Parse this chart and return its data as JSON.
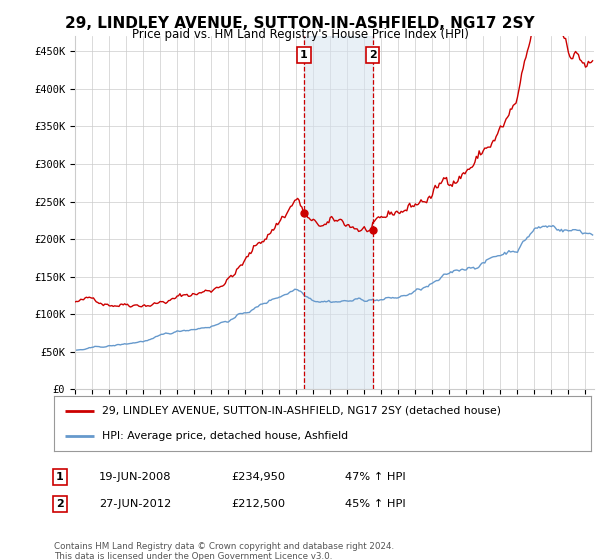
{
  "title": "29, LINDLEY AVENUE, SUTTON-IN-ASHFIELD, NG17 2SY",
  "subtitle": "Price paid vs. HM Land Registry's House Price Index (HPI)",
  "ylabel_ticks": [
    "£0",
    "£50K",
    "£100K",
    "£150K",
    "£200K",
    "£250K",
    "£300K",
    "£350K",
    "£400K",
    "£450K"
  ],
  "ytick_values": [
    0,
    50000,
    100000,
    150000,
    200000,
    250000,
    300000,
    350000,
    400000,
    450000
  ],
  "ylim": [
    0,
    470000
  ],
  "xlim_start": 1995.0,
  "xlim_end": 2025.5,
  "purchase1_date": 2008.46,
  "purchase1_price": 234950,
  "purchase2_date": 2012.49,
  "purchase2_price": 212500,
  "legend_line1": "29, LINDLEY AVENUE, SUTTON-IN-ASHFIELD, NG17 2SY (detached house)",
  "legend_line2": "HPI: Average price, detached house, Ashfield",
  "table_row1": [
    "1",
    "19-JUN-2008",
    "£234,950",
    "47% ↑ HPI"
  ],
  "table_row2": [
    "2",
    "27-JUN-2012",
    "£212,500",
    "45% ↑ HPI"
  ],
  "footer": "Contains HM Land Registry data © Crown copyright and database right 2024.\nThis data is licensed under the Open Government Licence v3.0.",
  "color_red": "#cc0000",
  "color_blue": "#6699cc",
  "color_shading": "#d6e4f0",
  "background_color": "#ffffff",
  "grid_color": "#cccccc"
}
